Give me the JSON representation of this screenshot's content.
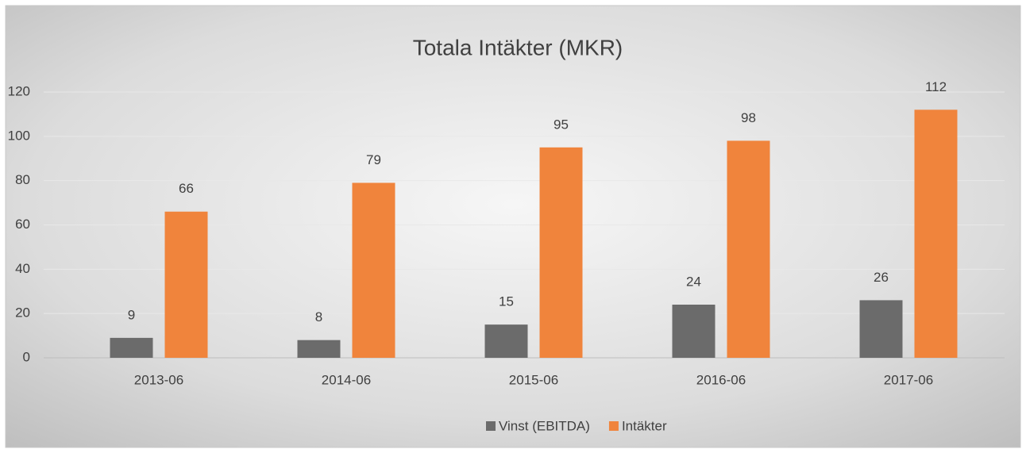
{
  "chart_data": {
    "type": "bar",
    "title": "Totala Intäkter (MKR)",
    "categories": [
      "2013-06",
      "2014-06",
      "2015-06",
      "2016-06",
      "2017-06"
    ],
    "series": [
      {
        "name": "Vinst (EBITDA)",
        "color": "#6b6b6b",
        "values": [
          9,
          8,
          15,
          24,
          26
        ]
      },
      {
        "name": "Intäkter",
        "color": "#f0843c",
        "values": [
          66,
          79,
          95,
          98,
          112
        ]
      }
    ],
    "ylim": [
      0,
      120
    ],
    "yticks": [
      0,
      20,
      40,
      60,
      80,
      100,
      120
    ],
    "grid": true,
    "legend": "bottom"
  }
}
